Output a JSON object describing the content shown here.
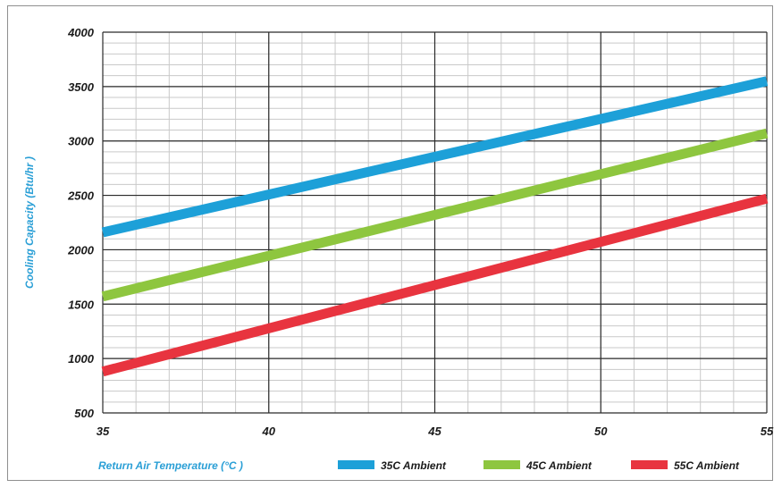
{
  "chart_data": {
    "type": "line",
    "title": "",
    "xlabel": "Return Air Temperature (°C )",
    "ylabel": "Cooling Capacity (Btu/hr )",
    "x": [
      35,
      55
    ],
    "xlim": [
      35,
      55
    ],
    "ylim": [
      500,
      4000
    ],
    "xticks": [
      "35",
      "40",
      "45",
      "50",
      "55"
    ],
    "yticks": [
      "500",
      "1000",
      "1500",
      "2000",
      "2500",
      "3000",
      "3500",
      "4000"
    ],
    "grid": true,
    "legend_position": "bottom",
    "series": [
      {
        "name": "35C Ambient",
        "color": "#1da0d8",
        "values": [
          2160,
          3550
        ]
      },
      {
        "name": "45C Ambient",
        "color": "#8ec63f",
        "values": [
          1570,
          3070
        ]
      },
      {
        "name": "55C Ambient",
        "color": "#e8343f",
        "values": [
          880,
          2470
        ]
      }
    ]
  }
}
